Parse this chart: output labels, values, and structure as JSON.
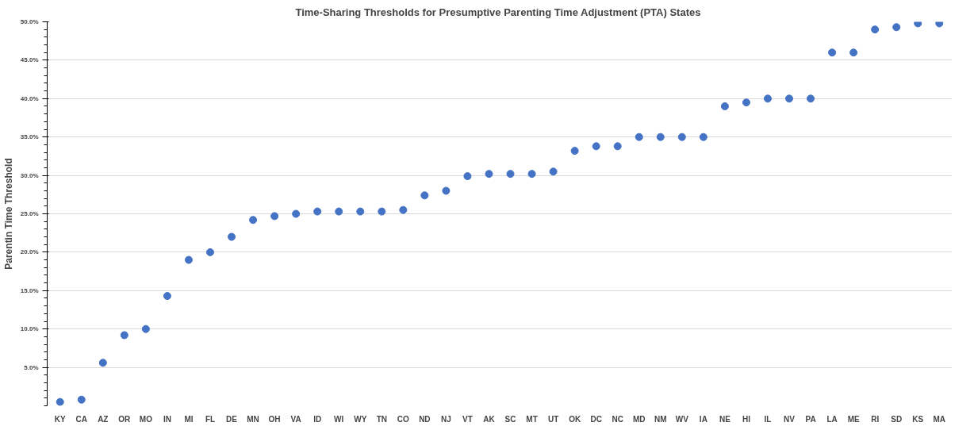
{
  "chart_data": {
    "type": "scatter",
    "title": "Time-Sharing Thresholds for Presumptive Parenting Time Adjustment (PTA)  States",
    "ylabel": "Parentin Time Threshold",
    "categories": [
      "KY",
      "CA",
      "AZ",
      "OR",
      "MO",
      "IN",
      "MI",
      "FL",
      "DE",
      "MN",
      "OH",
      "VA",
      "ID",
      "WI",
      "WY",
      "TN",
      "CO",
      "ND",
      "NJ",
      "VT",
      "AK",
      "SC",
      "MT",
      "UT",
      "OK",
      "DC",
      "NC",
      "MD",
      "NM",
      "WV",
      "IA",
      "NE",
      "HI",
      "IL",
      "NV",
      "PA",
      "LA",
      "ME",
      "RI",
      "SD",
      "KS",
      "MA"
    ],
    "series": [
      {
        "color": "#4472c4",
        "values": [
          0.5,
          0.8,
          5.6,
          9.2,
          10,
          14.3,
          19,
          20,
          22,
          24.2,
          24.7,
          25,
          25.3,
          25.3,
          25.3,
          25.3,
          25.5,
          27.4,
          28,
          29.9,
          30.2,
          30.2,
          30.2,
          30.5,
          33.2,
          33.8,
          33.8,
          35,
          35,
          35,
          35,
          39,
          39.5,
          40,
          40,
          40,
          46,
          46,
          49,
          49.3,
          49.8,
          49.8
        ]
      }
    ],
    "ylim": [
      0,
      50
    ],
    "yticks": [
      {
        "value": 5,
        "label": "5.0%"
      },
      {
        "value": 10,
        "label": "10.0%"
      },
      {
        "value": 15,
        "label": "15.0%"
      },
      {
        "value": 20,
        "label": "20.0%"
      },
      {
        "value": 25,
        "label": "25.0%"
      },
      {
        "value": 30,
        "label": "30.0%"
      },
      {
        "value": 35,
        "label": "35.0%"
      },
      {
        "value": 40,
        "label": "40.0%"
      },
      {
        "value": 45,
        "label": "45.0%"
      },
      {
        "value": 50,
        "label": "50.0%"
      }
    ],
    "grid": "y",
    "marker": "circle"
  }
}
